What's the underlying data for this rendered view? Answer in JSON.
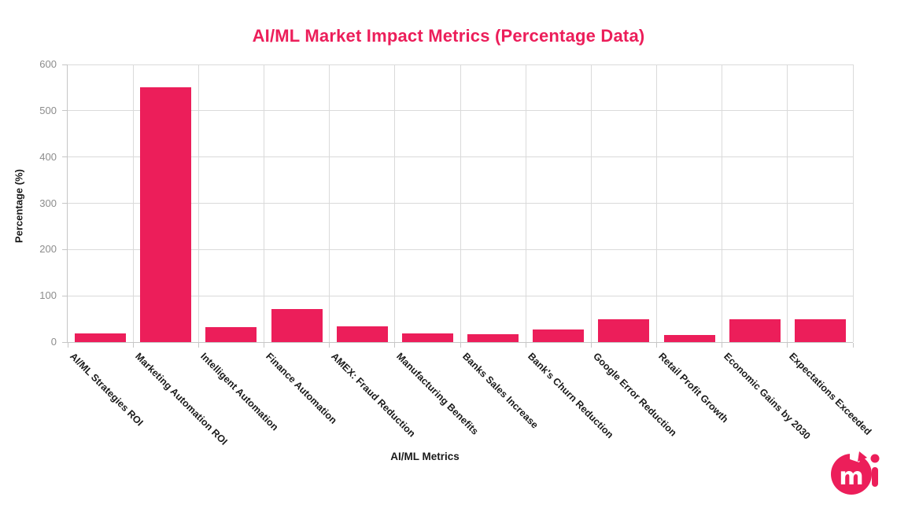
{
  "title": "AI/ML Market Impact Metrics (Percentage Data)",
  "colors": {
    "accent": "#EC1E5A",
    "bar": "#EC1E5A",
    "grid": "#DADADA",
    "axis": "#C6C6C6",
    "tick_label": "#8C8C8C",
    "text": "#1A1A1A",
    "background": "#FFFFFF"
  },
  "icons": {
    "brand_logo": "mi-circle-logo"
  },
  "chart_data": {
    "type": "bar",
    "title": "AI/ML Market Impact Metrics (Percentage Data)",
    "xlabel": "AI/ML Metrics",
    "ylabel": "Percentage (%)",
    "ylim": [
      0,
      600
    ],
    "yticks": [
      0,
      100,
      200,
      300,
      400,
      500,
      600
    ],
    "grid": true,
    "legend": false,
    "bar_color": "#EC1E5A",
    "categories": [
      "AI/ML Strategies ROI",
      "Marketing Automation ROI",
      "Intelligent Automation",
      "Finance Automation",
      "AMEX: Fraud Reduction",
      "Manufacturing Benefits",
      "Banks Sales Increase",
      "Bank's Churn Reduction",
      "Google Error Reduction",
      "Retail Profit Growth",
      "Economic Gains by 2030",
      "Expectations Exceeded"
    ],
    "values": [
      18,
      550,
      33,
      72,
      34,
      18,
      17,
      28,
      49,
      16,
      49,
      49
    ]
  }
}
